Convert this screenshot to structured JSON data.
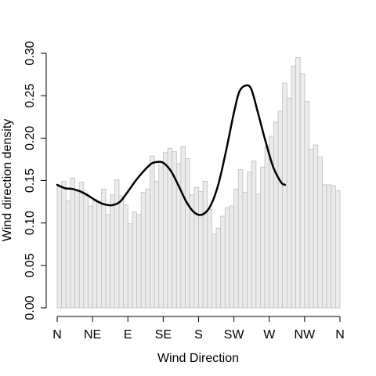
{
  "chart_data": {
    "type": "bar",
    "title": "",
    "xlabel": "Wind Direction",
    "ylabel": "Wind direction density",
    "xlim": [
      0,
      360
    ],
    "ylim": [
      0,
      0.3
    ],
    "x_ticks": [
      {
        "value": 0,
        "label": "N"
      },
      {
        "value": 45,
        "label": "NE"
      },
      {
        "value": 90,
        "label": "E"
      },
      {
        "value": 135,
        "label": "SE"
      },
      {
        "value": 180,
        "label": "S"
      },
      {
        "value": 225,
        "label": "SW"
      },
      {
        "value": 270,
        "label": "W"
      },
      {
        "value": 315,
        "label": "NW"
      },
      {
        "value": 360,
        "label": "N"
      }
    ],
    "y_ticks": [
      {
        "value": 0.0,
        "label": "0.00"
      },
      {
        "value": 0.05,
        "label": "0.05"
      },
      {
        "value": 0.1,
        "label": "0.10"
      },
      {
        "value": 0.15,
        "label": "0.15"
      },
      {
        "value": 0.2,
        "label": "0.20"
      },
      {
        "value": 0.25,
        "label": "0.25"
      },
      {
        "value": 0.3,
        "label": "0.30"
      }
    ],
    "bin_width": 5,
    "histogram": [
      0.143,
      0.149,
      0.126,
      0.153,
      0.137,
      0.148,
      0.135,
      0.12,
      0.128,
      0.126,
      0.14,
      0.11,
      0.133,
      0.151,
      0.132,
      0.121,
      0.099,
      0.113,
      0.11,
      0.136,
      0.14,
      0.179,
      0.149,
      0.172,
      0.183,
      0.188,
      0.184,
      0.17,
      0.19,
      0.176,
      0.133,
      0.142,
      0.137,
      0.149,
      0.116,
      0.087,
      0.094,
      0.108,
      0.118,
      0.12,
      0.14,
      0.163,
      0.136,
      0.16,
      0.173,
      0.134,
      0.166,
      0.19,
      0.202,
      0.219,
      0.232,
      0.265,
      0.247,
      0.285,
      0.295,
      0.276,
      0.243,
      0.187,
      0.192,
      0.178,
      0.145,
      0.145,
      0.144,
      0.138
    ],
    "density_curve": [
      {
        "x": 0,
        "y": 0.145
      },
      {
        "x": 10,
        "y": 0.141
      },
      {
        "x": 20,
        "y": 0.14
      },
      {
        "x": 30,
        "y": 0.137
      },
      {
        "x": 40,
        "y": 0.132
      },
      {
        "x": 50,
        "y": 0.126
      },
      {
        "x": 60,
        "y": 0.122
      },
      {
        "x": 70,
        "y": 0.121
      },
      {
        "x": 80,
        "y": 0.125
      },
      {
        "x": 90,
        "y": 0.137
      },
      {
        "x": 100,
        "y": 0.15
      },
      {
        "x": 110,
        "y": 0.161
      },
      {
        "x": 120,
        "y": 0.17
      },
      {
        "x": 128,
        "y": 0.172
      },
      {
        "x": 135,
        "y": 0.171
      },
      {
        "x": 145,
        "y": 0.161
      },
      {
        "x": 155,
        "y": 0.143
      },
      {
        "x": 165,
        "y": 0.124
      },
      {
        "x": 175,
        "y": 0.112
      },
      {
        "x": 185,
        "y": 0.11
      },
      {
        "x": 195,
        "y": 0.12
      },
      {
        "x": 205,
        "y": 0.145
      },
      {
        "x": 215,
        "y": 0.185
      },
      {
        "x": 225,
        "y": 0.23
      },
      {
        "x": 232,
        "y": 0.255
      },
      {
        "x": 240,
        "y": 0.262
      },
      {
        "x": 247,
        "y": 0.258
      },
      {
        "x": 255,
        "y": 0.232
      },
      {
        "x": 265,
        "y": 0.197
      },
      {
        "x": 275,
        "y": 0.166
      },
      {
        "x": 285,
        "y": 0.148
      },
      {
        "x": 290,
        "y": 0.145
      }
    ],
    "colors": {
      "bar_fill": "#ebebeb",
      "bar_stroke": "#bdbdbd",
      "curve": "#000000",
      "axis": "#000000"
    },
    "grid": false,
    "legend": "none"
  }
}
